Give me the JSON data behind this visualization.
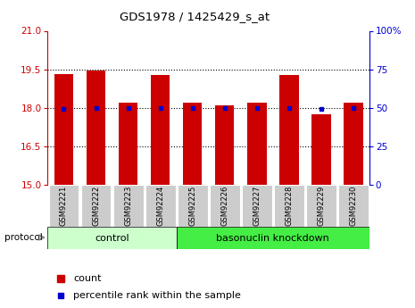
{
  "title": "GDS1978 / 1425429_s_at",
  "samples": [
    "GSM92221",
    "GSM92222",
    "GSM92223",
    "GSM92224",
    "GSM92225",
    "GSM92226",
    "GSM92227",
    "GSM92228",
    "GSM92229",
    "GSM92230"
  ],
  "counts": [
    19.3,
    19.45,
    18.2,
    19.28,
    18.2,
    18.1,
    18.2,
    19.28,
    17.75,
    18.2
  ],
  "percentiles": [
    49,
    50,
    50,
    50,
    50,
    50,
    50,
    50,
    49,
    50
  ],
  "ylim_left": [
    15,
    21
  ],
  "ylim_right": [
    0,
    100
  ],
  "yticks_left": [
    15,
    16.5,
    18,
    19.5,
    21
  ],
  "yticks_right": [
    0,
    25,
    50,
    75,
    100
  ],
  "bar_color": "#cc0000",
  "dot_color": "#0000cc",
  "control_color_light": "#ccffcc",
  "knockdown_color": "#44ee44",
  "bg_color": "#ffffff",
  "tick_bg_color": "#cccccc",
  "control_label": "control",
  "knockdown_label": "basonuclin knockdown",
  "protocol_label": "protocol",
  "legend_count": "count",
  "legend_pct": "percentile rank within the sample",
  "n_control": 4,
  "n_knockdown": 6,
  "fig_width": 4.65,
  "fig_height": 3.45,
  "dpi": 100
}
